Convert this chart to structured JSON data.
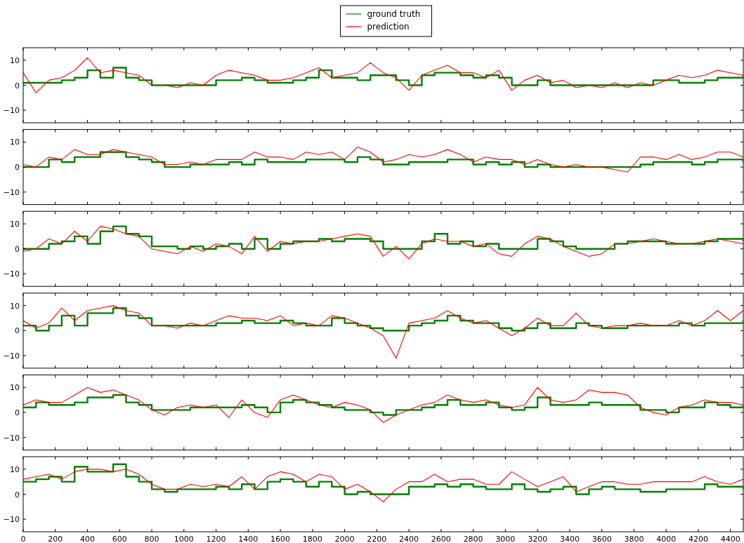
{
  "chart_data": [
    {
      "type": "line",
      "legend": "top",
      "xlim": [
        0,
        4480
      ],
      "ylim": [
        -15,
        15
      ],
      "xticks": [
        0,
        200,
        400,
        600,
        800,
        1000,
        1200,
        1400,
        1600,
        1800,
        2000,
        2200,
        2400,
        2600,
        2800,
        3000,
        3200,
        3400,
        3600,
        3800,
        4000,
        4200,
        4400
      ],
      "yticks": [
        -10,
        0,
        10
      ],
      "tick_labels": "y",
      "x": [
        0,
        80,
        160,
        240,
        320,
        400,
        480,
        560,
        640,
        720,
        800,
        880,
        960,
        1040,
        1120,
        1200,
        1280,
        1360,
        1440,
        1520,
        1600,
        1680,
        1760,
        1840,
        1920,
        2000,
        2080,
        2160,
        2240,
        2320,
        2400,
        2480,
        2560,
        2640,
        2720,
        2800,
        2880,
        2960,
        3040,
        3120,
        3200,
        3280,
        3360,
        3440,
        3520,
        3600,
        3680,
        3760,
        3840,
        3920,
        4000,
        4080,
        4160,
        4240,
        4320,
        4400,
        4480
      ],
      "series": [
        {
          "name": "ground truth",
          "type": "step",
          "color": "#008000",
          "values": [
            1,
            1,
            1,
            2,
            3,
            6,
            3,
            7,
            3,
            2,
            0,
            0,
            0,
            0,
            0,
            2,
            2,
            3,
            2,
            1,
            1,
            2,
            3,
            6,
            3,
            3,
            2,
            4,
            4,
            2,
            0,
            4,
            5,
            5,
            4,
            3,
            4,
            3,
            0,
            0,
            2,
            0,
            0,
            0,
            0,
            0,
            0,
            0,
            0,
            2,
            2,
            1,
            1,
            2,
            3,
            3,
            4
          ]
        },
        {
          "name": "prediction",
          "color": "#ff0000",
          "values": [
            5,
            -3,
            2,
            3,
            6,
            11,
            5,
            6,
            5,
            4,
            0,
            0,
            -1,
            1,
            0,
            4,
            6,
            5,
            4,
            2,
            2,
            3,
            5,
            7,
            3,
            4,
            5,
            9,
            5,
            3,
            -2,
            4,
            6,
            8,
            5,
            5,
            3,
            6,
            -2,
            2,
            4,
            1,
            2,
            -1,
            0,
            -1,
            1,
            -1,
            1,
            0,
            2,
            4,
            3,
            4,
            6,
            5,
            4
          ]
        }
      ]
    },
    {
      "type": "line",
      "xlim": [
        0,
        4480
      ],
      "ylim": [
        -15,
        15
      ],
      "xticks": [
        0,
        200,
        400,
        600,
        800,
        1000,
        1200,
        1400,
        1600,
        1800,
        2000,
        2200,
        2400,
        2600,
        2800,
        3000,
        3200,
        3400,
        3600,
        3800,
        4000,
        4200,
        4400
      ],
      "yticks": [
        -10,
        0,
        10
      ],
      "tick_labels": "y",
      "x": [
        0,
        80,
        160,
        240,
        320,
        400,
        480,
        560,
        640,
        720,
        800,
        880,
        960,
        1040,
        1120,
        1200,
        1280,
        1360,
        1440,
        1520,
        1600,
        1680,
        1760,
        1840,
        1920,
        2000,
        2080,
        2160,
        2240,
        2320,
        2400,
        2480,
        2560,
        2640,
        2720,
        2800,
        2880,
        2960,
        3040,
        3120,
        3200,
        3280,
        3360,
        3440,
        3520,
        3600,
        3680,
        3760,
        3840,
        3920,
        4000,
        4080,
        4160,
        4240,
        4320,
        4400,
        4480
      ],
      "series": [
        {
          "type": "step",
          "color": "#008000",
          "values": [
            0,
            0,
            3,
            2,
            4,
            4,
            6,
            6,
            4,
            3,
            2,
            0,
            0,
            1,
            1,
            1,
            2,
            1,
            3,
            2,
            2,
            2,
            3,
            3,
            3,
            2,
            4,
            3,
            1,
            1,
            2,
            2,
            2,
            3,
            3,
            1,
            2,
            1,
            2,
            0,
            1,
            0,
            0,
            0,
            0,
            0,
            0,
            0,
            1,
            2,
            2,
            2,
            1,
            2,
            3,
            3,
            2
          ]
        },
        {
          "color": "#ff0000",
          "values": [
            1,
            0,
            4,
            3,
            7,
            5,
            5,
            7,
            6,
            5,
            4,
            1,
            1,
            2,
            1,
            3,
            3,
            3,
            6,
            4,
            4,
            3,
            6,
            5,
            6,
            3,
            8,
            6,
            2,
            3,
            5,
            4,
            5,
            7,
            5,
            2,
            4,
            3,
            3,
            1,
            3,
            1,
            0,
            1,
            0,
            0,
            -1,
            -2,
            4,
            4,
            3,
            5,
            3,
            4,
            6,
            6,
            4
          ]
        }
      ]
    },
    {
      "type": "line",
      "xlim": [
        0,
        4480
      ],
      "ylim": [
        -15,
        15
      ],
      "xticks": [
        0,
        200,
        400,
        600,
        800,
        1000,
        1200,
        1400,
        1600,
        1800,
        2000,
        2200,
        2400,
        2600,
        2800,
        3000,
        3200,
        3400,
        3600,
        3800,
        4000,
        4200,
        4400
      ],
      "yticks": [
        -10,
        0,
        10
      ],
      "tick_labels": "y",
      "x": [
        0,
        80,
        160,
        240,
        320,
        400,
        480,
        560,
        640,
        720,
        800,
        880,
        960,
        1040,
        1120,
        1200,
        1280,
        1360,
        1440,
        1520,
        1600,
        1680,
        1760,
        1840,
        1920,
        2000,
        2080,
        2160,
        2240,
        2320,
        2400,
        2480,
        2560,
        2640,
        2720,
        2800,
        2880,
        2960,
        3040,
        3120,
        3200,
        3280,
        3360,
        3440,
        3520,
        3600,
        3680,
        3760,
        3840,
        3920,
        4000,
        4080,
        4160,
        4240,
        4320,
        4400,
        4480
      ],
      "series": [
        {
          "type": "step",
          "color": "#008000",
          "values": [
            0,
            0,
            2,
            3,
            5,
            2,
            7,
            9,
            6,
            5,
            1,
            1,
            0,
            1,
            0,
            1,
            2,
            0,
            4,
            0,
            2,
            3,
            3,
            4,
            3,
            4,
            4,
            3,
            0,
            0,
            0,
            3,
            6,
            2,
            3,
            1,
            2,
            0,
            0,
            0,
            4,
            3,
            1,
            0,
            0,
            0,
            2,
            3,
            3,
            3,
            2,
            2,
            2,
            3,
            4,
            4,
            3
          ]
        },
        {
          "color": "#ff0000",
          "values": [
            -1,
            0,
            4,
            2,
            7,
            3,
            9,
            8,
            6,
            5,
            0,
            -1,
            -2,
            1,
            -1,
            2,
            1,
            -2,
            5,
            -1,
            3,
            2,
            3,
            3,
            4,
            5,
            6,
            5,
            -3,
            1,
            -4,
            2,
            4,
            3,
            3,
            1,
            2,
            -2,
            -3,
            2,
            5,
            4,
            1,
            -1,
            -3,
            -2,
            2,
            2,
            3,
            4,
            3,
            2,
            2,
            3,
            4,
            3,
            2
          ]
        }
      ]
    },
    {
      "type": "line",
      "xlim": [
        0,
        4480
      ],
      "ylim": [
        -15,
        15
      ],
      "xticks": [
        0,
        200,
        400,
        600,
        800,
        1000,
        1200,
        1400,
        1600,
        1800,
        2000,
        2200,
        2400,
        2600,
        2800,
        3000,
        3200,
        3400,
        3600,
        3800,
        4000,
        4200,
        4400
      ],
      "yticks": [
        -10,
        0,
        10
      ],
      "tick_labels": "y",
      "x": [
        0,
        80,
        160,
        240,
        320,
        400,
        480,
        560,
        640,
        720,
        800,
        880,
        960,
        1040,
        1120,
        1200,
        1280,
        1360,
        1440,
        1520,
        1600,
        1680,
        1760,
        1840,
        1920,
        2000,
        2080,
        2160,
        2240,
        2320,
        2400,
        2480,
        2560,
        2640,
        2720,
        2800,
        2880,
        2960,
        3040,
        3120,
        3200,
        3280,
        3360,
        3440,
        3520,
        3600,
        3680,
        3760,
        3840,
        3920,
        4000,
        4080,
        4160,
        4240,
        4320,
        4400,
        4480
      ],
      "series": [
        {
          "type": "step",
          "color": "#008000",
          "values": [
            2,
            0,
            2,
            6,
            2,
            7,
            7,
            9,
            6,
            5,
            2,
            2,
            2,
            2,
            2,
            3,
            3,
            4,
            3,
            3,
            4,
            3,
            2,
            2,
            5,
            3,
            2,
            1,
            0,
            0,
            2,
            3,
            4,
            6,
            4,
            3,
            3,
            1,
            0,
            1,
            3,
            1,
            1,
            3,
            2,
            1,
            1,
            2,
            2,
            2,
            2,
            3,
            2,
            3,
            3,
            3,
            4
          ]
        },
        {
          "color": "#ff0000",
          "values": [
            4,
            1,
            3,
            9,
            4,
            8,
            9,
            10,
            8,
            7,
            2,
            2,
            1,
            3,
            2,
            4,
            6,
            5,
            5,
            4,
            6,
            2,
            3,
            2,
            6,
            5,
            3,
            1,
            -2,
            -11,
            3,
            4,
            5,
            8,
            5,
            3,
            4,
            1,
            -2,
            1,
            5,
            2,
            2,
            7,
            2,
            1,
            2,
            2,
            3,
            2,
            2,
            4,
            2,
            4,
            8,
            4,
            8
          ]
        }
      ]
    },
    {
      "type": "line",
      "xlim": [
        0,
        4480
      ],
      "ylim": [
        -15,
        15
      ],
      "xticks": [
        0,
        200,
        400,
        600,
        800,
        1000,
        1200,
        1400,
        1600,
        1800,
        2000,
        2200,
        2400,
        2600,
        2800,
        3000,
        3200,
        3400,
        3600,
        3800,
        4000,
        4200,
        4400
      ],
      "yticks": [
        -10,
        0,
        10
      ],
      "tick_labels": "y",
      "x": [
        0,
        80,
        160,
        240,
        320,
        400,
        480,
        560,
        640,
        720,
        800,
        880,
        960,
        1040,
        1120,
        1200,
        1280,
        1360,
        1440,
        1520,
        1600,
        1680,
        1760,
        1840,
        1920,
        2000,
        2080,
        2160,
        2240,
        2320,
        2400,
        2480,
        2560,
        2640,
        2720,
        2800,
        2880,
        2960,
        3040,
        3120,
        3200,
        3280,
        3360,
        3440,
        3520,
        3600,
        3680,
        3760,
        3840,
        3920,
        4000,
        4080,
        4160,
        4240,
        4320,
        4400,
        4480
      ],
      "series": [
        {
          "type": "step",
          "color": "#008000",
          "values": [
            2,
            4,
            3,
            3,
            4,
            6,
            6,
            7,
            4,
            3,
            1,
            1,
            1,
            2,
            2,
            2,
            2,
            3,
            2,
            0,
            4,
            5,
            4,
            3,
            2,
            1,
            1,
            0,
            -1,
            1,
            1,
            2,
            3,
            5,
            3,
            3,
            4,
            2,
            1,
            2,
            6,
            3,
            3,
            3,
            4,
            3,
            3,
            3,
            1,
            1,
            0,
            2,
            2,
            4,
            3,
            2,
            3
          ]
        },
        {
          "color": "#ff0000",
          "values": [
            3,
            5,
            4,
            4,
            7,
            10,
            8,
            9,
            7,
            5,
            1,
            -1,
            2,
            3,
            2,
            3,
            -2,
            5,
            0,
            -2,
            5,
            7,
            5,
            3,
            2,
            4,
            3,
            1,
            -4,
            -1,
            1,
            3,
            4,
            7,
            5,
            4,
            5,
            3,
            2,
            3,
            10,
            5,
            4,
            5,
            9,
            8,
            8,
            7,
            2,
            0,
            -1,
            2,
            3,
            5,
            4,
            4,
            3
          ]
        }
      ]
    },
    {
      "type": "line",
      "xlim": [
        0,
        4480
      ],
      "ylim": [
        -15,
        15
      ],
      "xticks": [
        0,
        200,
        400,
        600,
        800,
        1000,
        1200,
        1400,
        1600,
        1800,
        2000,
        2200,
        2400,
        2600,
        2800,
        3000,
        3200,
        3400,
        3600,
        3800,
        4000,
        4200,
        4400
      ],
      "yticks": [
        -10,
        0,
        10
      ],
      "x": [
        0,
        80,
        160,
        240,
        320,
        400,
        480,
        560,
        640,
        720,
        800,
        880,
        960,
        1040,
        1120,
        1200,
        1280,
        1360,
        1440,
        1520,
        1600,
        1680,
        1760,
        1840,
        1920,
        2000,
        2080,
        2160,
        2240,
        2320,
        2400,
        2480,
        2560,
        2640,
        2720,
        2800,
        2880,
        2960,
        3040,
        3120,
        3200,
        3280,
        3360,
        3440,
        3520,
        3600,
        3680,
        3760,
        3840,
        3920,
        4000,
        4080,
        4160,
        4240,
        4320,
        4400,
        4480
      ],
      "series": [
        {
          "type": "step",
          "color": "#008000",
          "values": [
            5,
            6,
            7,
            5,
            11,
            9,
            9,
            12,
            7,
            5,
            2,
            1,
            2,
            2,
            2,
            3,
            2,
            4,
            2,
            5,
            6,
            5,
            3,
            5,
            3,
            0,
            1,
            0,
            0,
            0,
            3,
            3,
            4,
            3,
            4,
            3,
            2,
            2,
            4,
            2,
            1,
            2,
            3,
            0,
            2,
            3,
            2,
            2,
            1,
            1,
            2,
            2,
            2,
            4,
            3,
            3,
            2
          ]
        },
        {
          "color": "#ff0000",
          "values": [
            6,
            7,
            8,
            6,
            9,
            10,
            10,
            9,
            10,
            8,
            4,
            2,
            2,
            4,
            3,
            4,
            3,
            7,
            2,
            7,
            9,
            8,
            5,
            8,
            7,
            2,
            4,
            1,
            -3,
            2,
            5,
            5,
            8,
            5,
            6,
            6,
            4,
            4,
            9,
            6,
            3,
            5,
            7,
            1,
            3,
            5,
            5,
            4,
            4,
            5,
            5,
            5,
            5,
            7,
            5,
            4,
            6
          ]
        }
      ]
    }
  ]
}
